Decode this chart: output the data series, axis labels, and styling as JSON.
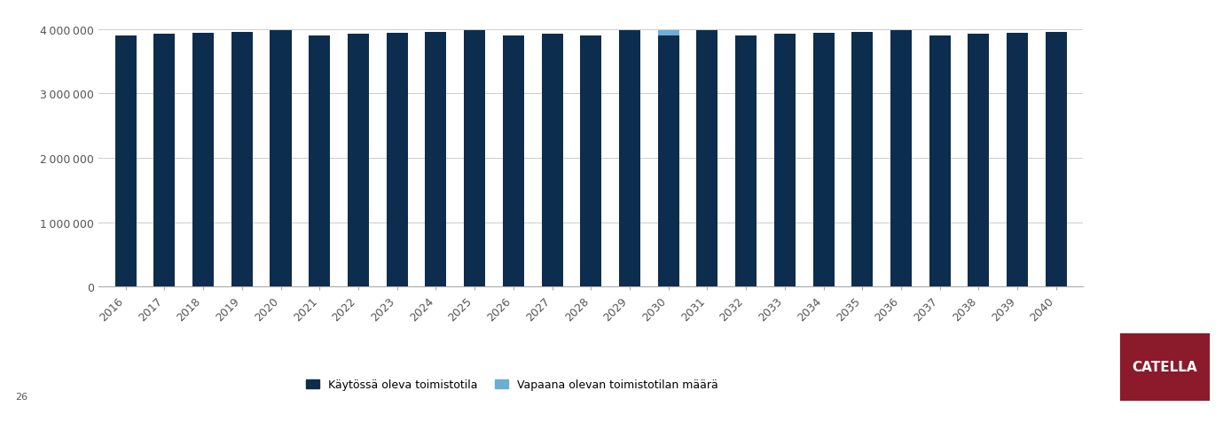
{
  "years": [
    2016,
    2017,
    2018,
    2019,
    2020,
    2021,
    2022,
    2023,
    2024,
    2025,
    2026,
    2027,
    2028,
    2029,
    2030,
    2031,
    2032,
    2033,
    2034,
    2035,
    2036,
    2037,
    2038,
    2039,
    2040
  ],
  "kaytossa": [
    3900000,
    3920000,
    3940000,
    3960000,
    3980000,
    3900000,
    3920000,
    3940000,
    3960000,
    3980000,
    3900000,
    3920000,
    3900000,
    3980000,
    3900000,
    3980000,
    3900000,
    3920000,
    3940000,
    3960000,
    3980000,
    3900000,
    3920000,
    3940000,
    3960000
  ],
  "vapaana": [
    0,
    0,
    0,
    0,
    0,
    0,
    0,
    0,
    0,
    0,
    0,
    0,
    0,
    0,
    80000,
    0,
    0,
    0,
    0,
    0,
    0,
    0,
    0,
    0,
    0
  ],
  "bar_color_dark": "#0d2d4e",
  "bar_color_light": "#6baed6",
  "background_color": "#ffffff",
  "ylim": [
    0,
    4200000
  ],
  "yticks": [
    0,
    1000000,
    2000000,
    3000000,
    4000000
  ],
  "ytick_labels": [
    "0",
    "1 000 000",
    "2 000 000",
    "3 000 000",
    "4 000 000"
  ],
  "legend_dark": "Käytössä oleva toimistotila",
  "legend_light": "Vapaana olevan toimistotilan määrä",
  "page_number": "26",
  "catella_bg": "#8b1a2b",
  "catella_text": "CATELLA"
}
